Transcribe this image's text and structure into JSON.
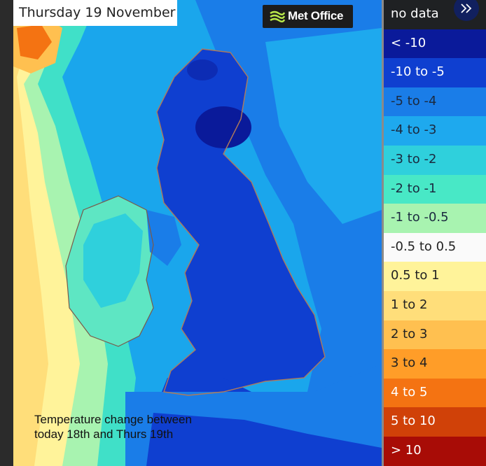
{
  "header": {
    "date_label": "Thursday 19 November"
  },
  "brand": {
    "logo_text": "Met Office"
  },
  "caption": {
    "line1": "Temperature change between",
    "line2": "today 18th and Thurs 19th"
  },
  "legend": {
    "items": [
      {
        "label": "no data",
        "color": "#1f2123",
        "text_color": "#ffffff"
      },
      {
        "label": "< -10",
        "color": "#0a1a9a",
        "text_color": "#ffffff"
      },
      {
        "label": "-10 to -5",
        "color": "#0f3fd0",
        "text_color": "#ffffff"
      },
      {
        "label": "-5 to -4",
        "color": "#1a7de8",
        "text_color": "#1b2a40"
      },
      {
        "label": "-4 to -3",
        "color": "#1ea9ee",
        "text_color": "#1b2a40"
      },
      {
        "label": "-3 to -2",
        "color": "#2fd0dc",
        "text_color": "#1b2a40"
      },
      {
        "label": "-2 to -1",
        "color": "#48e8c6",
        "text_color": "#1b2a40"
      },
      {
        "label": "-1 to -0.5",
        "color": "#a8f3b0",
        "text_color": "#1b2a40"
      },
      {
        "label": "-0.5 to 0.5",
        "color": "#fafafa",
        "text_color": "#222222"
      },
      {
        "label": "0.5 to 1",
        "color": "#fff39a",
        "text_color": "#222222"
      },
      {
        "label": "1 to 2",
        "color": "#ffde7a",
        "text_color": "#222222"
      },
      {
        "label": "2 to 3",
        "color": "#ffc050",
        "text_color": "#222222"
      },
      {
        "label": "3 to 4",
        "color": "#ff9d28",
        "text_color": "#222222"
      },
      {
        "label": "4 to 5",
        "color": "#f47312",
        "text_color": "#ffffff"
      },
      {
        "label": "5 to 10",
        "color": "#d04108",
        "text_color": "#ffffff"
      },
      {
        "label": "> 10",
        "color": "#a80c06",
        "text_color": "#ffffff"
      }
    ]
  },
  "controls": {
    "expand_icon": "double-chevron-right-icon"
  }
}
